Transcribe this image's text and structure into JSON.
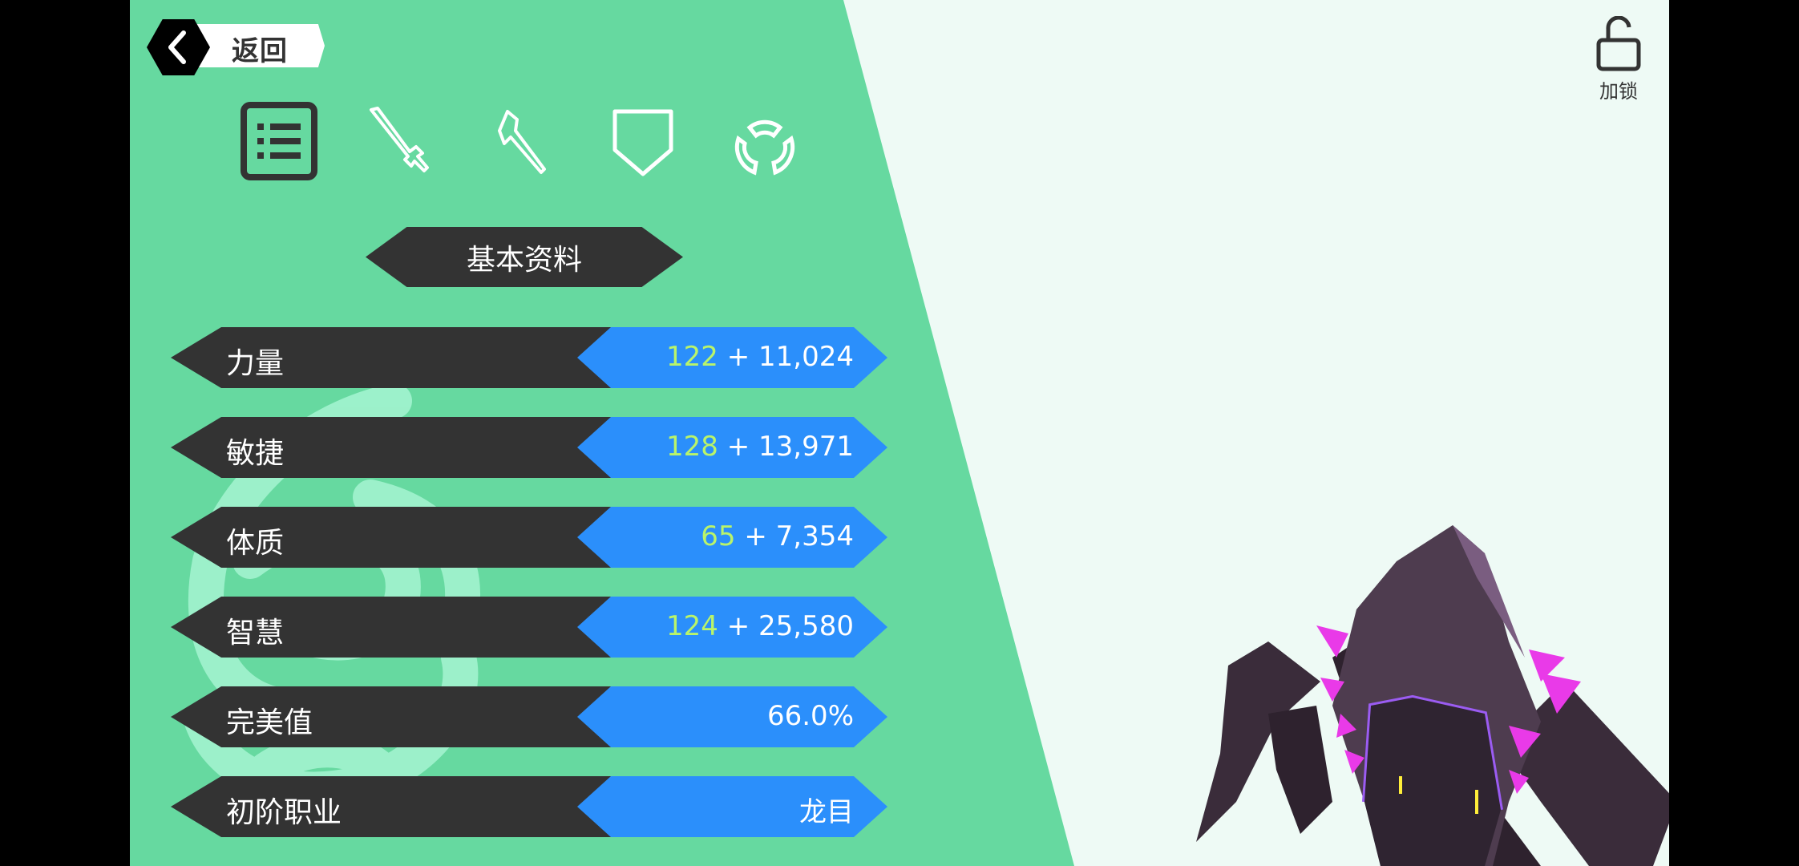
{
  "header": {
    "back_label": "返回",
    "lock_label": "加锁"
  },
  "tabs": [
    {
      "icon": "list-icon",
      "active": true
    },
    {
      "icon": "sword-icon",
      "active": false
    },
    {
      "icon": "hammer-icon",
      "active": false
    },
    {
      "icon": "shield-icon",
      "active": false
    },
    {
      "icon": "ring-icon",
      "active": false
    }
  ],
  "section_title": "基本资料",
  "stats": [
    {
      "label": "力量",
      "base": "122",
      "bonus": " + 11,024"
    },
    {
      "label": "敏捷",
      "base": "128",
      "bonus": " + 13,971"
    },
    {
      "label": "体质",
      "base": "65",
      "bonus": " + 7,354"
    },
    {
      "label": "智慧",
      "base": "124",
      "bonus": " + 25,580"
    },
    {
      "label": "完美值",
      "base": "",
      "bonus": "66.0%"
    },
    {
      "label": "初阶职业",
      "base": "",
      "bonus": "龙目"
    }
  ],
  "colors": {
    "panel_green": "#66d9a0",
    "value_blue": "#2b8ffb",
    "label_dark": "#333333",
    "base_value": "#b9f46a",
    "background": "#eefaf5"
  }
}
